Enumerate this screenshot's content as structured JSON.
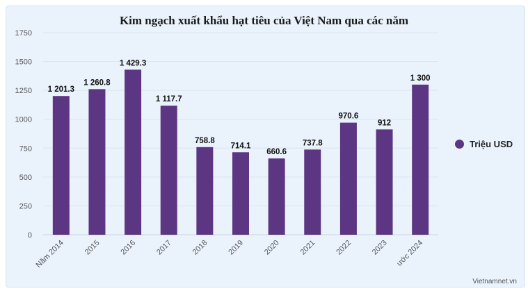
{
  "chart_data": {
    "type": "bar",
    "title": "Kim ngạch xuất khẩu hạt tiêu của Việt Nam qua các năm",
    "categories": [
      "Năm 2014",
      "2015",
      "2016",
      "2017",
      "2018",
      "2019",
      "2020",
      "2021",
      "2022",
      "2023",
      "ước 2024"
    ],
    "series": [
      {
        "name": "Triệu USD",
        "values": [
          1201.3,
          1260.8,
          1429.3,
          1117.7,
          758.8,
          714.1,
          660.6,
          737.8,
          970.6,
          912,
          1300
        ],
        "labels": [
          "1 201.3",
          "1 260.8",
          "1 429.3",
          "1 117.7",
          "758.8",
          "714.1",
          "660.6",
          "737.8",
          "970.6",
          "912",
          "1 300"
        ]
      }
    ],
    "ylim": [
      0,
      1750
    ],
    "yticks": [
      0,
      250,
      500,
      750,
      1000,
      1250,
      1500,
      1750
    ],
    "grid": true,
    "legend_position": "right",
    "colors": {
      "bar": "#5c3682",
      "grid": "#d9e4ef",
      "axis_text": "#555555"
    }
  },
  "credit": "Vietnamnet.vn"
}
